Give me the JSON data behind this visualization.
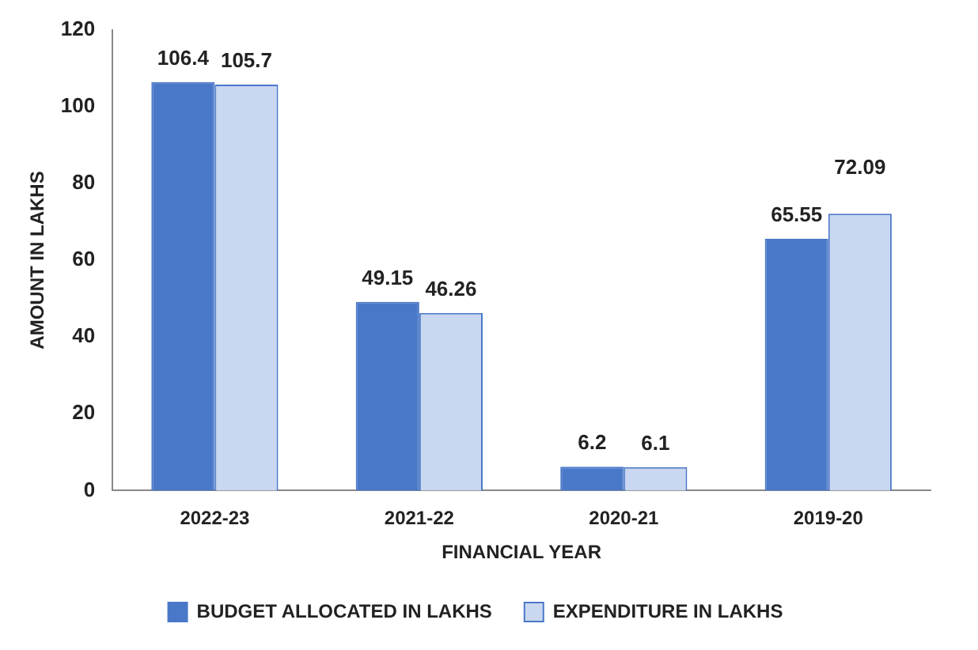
{
  "chart_data": {
    "type": "bar",
    "xlabel": "FINANCIAL YEAR",
    "ylabel": "AMOUNT IN LAKHS",
    "categories": [
      "2022-23",
      "2021-22",
      "2020-21",
      "2019-20"
    ],
    "series": [
      {
        "name": "BUDGET ALLOCATED IN LAKHS",
        "color": "#4a78c8",
        "values": [
          106.4,
          49.15,
          6.2,
          65.55
        ]
      },
      {
        "name": "EXPENDITURE IN LAKHS",
        "color": "#c9d7f0",
        "values": [
          105.7,
          46.26,
          6.1,
          72.09
        ]
      }
    ],
    "ylim": [
      0,
      120
    ],
    "yticks": [
      0,
      20,
      40,
      60,
      80,
      100,
      120
    ],
    "grid": false,
    "legend": "bottom",
    "data_labels": true
  }
}
